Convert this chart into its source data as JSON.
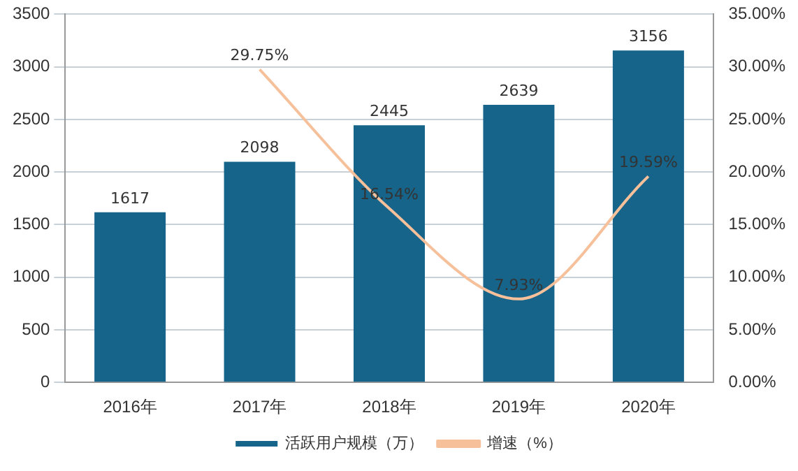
{
  "chart_data": {
    "type": "bar",
    "categories": [
      "2016年",
      "2017年",
      "2018年",
      "2019年",
      "2020年"
    ],
    "series": [
      {
        "name": "活跃用户规模（万）",
        "color": "#16648a",
        "values": [
          1617,
          2098,
          2445,
          2639,
          3156
        ]
      },
      {
        "name": "增速（%）",
        "type": "line",
        "axis": "y2",
        "color": "#f5c09a",
        "values": [
          null,
          29.75,
          16.54,
          7.93,
          19.59
        ],
        "value_labels": [
          null,
          "29.75%",
          "16.54%",
          "7.93%",
          "19.59%"
        ]
      }
    ],
    "ylim": [
      0,
      3500
    ],
    "yticks": [
      0,
      500,
      1000,
      1500,
      2000,
      2500,
      3000,
      3500
    ],
    "y2lim": [
      0,
      35
    ],
    "y2ticks": [
      {
        "value": 0,
        "label": "0.00%"
      },
      {
        "value": 5,
        "label": "5.00%"
      },
      {
        "value": 10,
        "label": "10.00%"
      },
      {
        "value": 15,
        "label": "15.00%"
      },
      {
        "value": 20,
        "label": "20.00%"
      },
      {
        "value": 25,
        "label": "25.00%"
      },
      {
        "value": 30,
        "label": "30.00%"
      },
      {
        "value": 35,
        "label": "35.00%"
      }
    ],
    "grid": "y",
    "legend": "bottom",
    "data_labels": true,
    "marker": "none"
  }
}
